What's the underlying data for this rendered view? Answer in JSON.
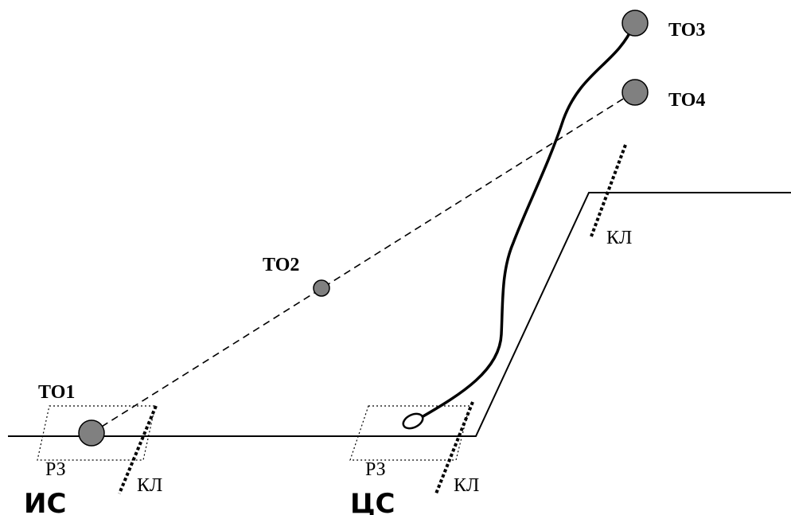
{
  "labels": {
    "to1": "ТО1",
    "to2": "ТО2",
    "to3": "ТО3",
    "to4": "ТО4",
    "rz_left": "РЗ",
    "rz_right": "РЗ",
    "kl_left": "КЛ",
    "kl_center": "КЛ",
    "kl_upper": "КЛ",
    "is_station": "ИС",
    "cs_station": "ЦС"
  },
  "colors": {
    "object_fill": "#808080",
    "stroke": "#000000"
  }
}
